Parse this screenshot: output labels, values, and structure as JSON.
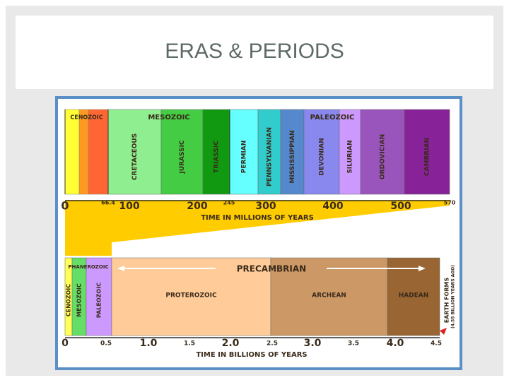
{
  "header": {
    "title": "ERAS & PERIODS"
  },
  "top_chart": {
    "eras": [
      "CENOZOIC",
      "MESOZOIC",
      "PALEOZOIC"
    ],
    "periods": [
      "CRETACEOUS",
      "JURASSIC",
      "TRIASSIC",
      "PERMIAN",
      "PENNSYLVANIAN",
      "MISSISSIPPIAN",
      "DEVONIAN",
      "SILURIAN",
      "ORDOVICIAN",
      "CAMBRIAN"
    ],
    "ticks": [
      "0",
      "66.4",
      "100",
      "200",
      "245",
      "300",
      "400",
      "500",
      "570"
    ],
    "axis_label": "TIME IN MILLIONS OF YEARS"
  },
  "bottom_chart": {
    "eon_header": "PHANEROZOIC",
    "phanerozoic_eras": [
      "CENOZOIC",
      "MESOZOIC",
      "PALEOZOIC"
    ],
    "precambrian": "PRECAMBRIAN",
    "eons": [
      "PROTEROZOIC",
      "ARCHEAN",
      "HADEAN"
    ],
    "note": "EARTH FORMS",
    "note_sub": "(4.55 BILLION YEARS AGO)",
    "ticks": [
      "0",
      "0.5",
      "1.0",
      "1.5",
      "2.0",
      "2.5",
      "3.0",
      "3.5",
      "4.0",
      "4.5"
    ],
    "axis_label": "TIME IN BILLIONS OF YEARS"
  }
}
